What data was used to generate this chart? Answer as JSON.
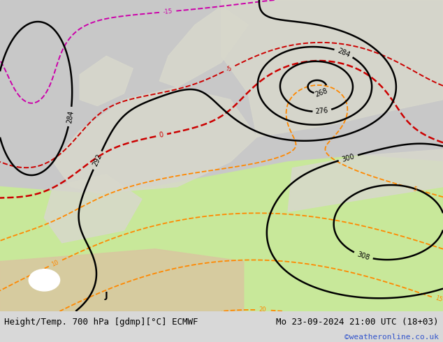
{
  "title_left": "Height/Temp. 700 hPa [gdmp][°C] ECMWF",
  "title_right": "Mo 23-09-2024 21:00 UTC (18+03)",
  "credit": "©weatheronline.co.uk",
  "figure_bg": "#ffffff",
  "bottom_bar_color": "#d8d8d8",
  "font_family": "monospace",
  "title_fontsize": 9,
  "credit_color": "#3355cc",
  "contour_black_color": "#000000",
  "contour_orange_color": "#ff8800",
  "contour_red_color": "#cc0000",
  "contour_green_color": "#44bb00",
  "contour_magenta_color": "#cc00aa",
  "label_fontsize": 7
}
